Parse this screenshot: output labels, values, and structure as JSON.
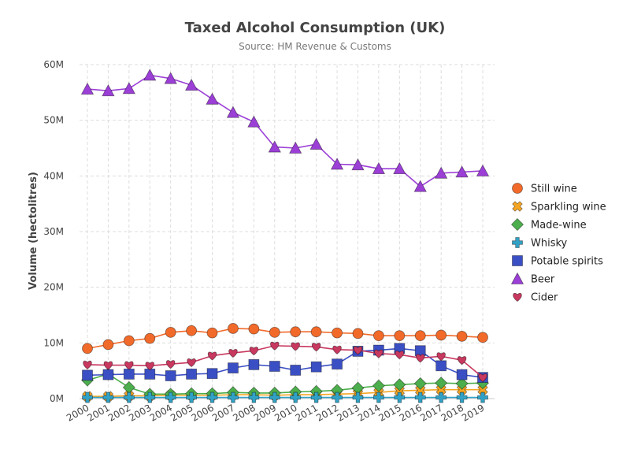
{
  "chart_data": {
    "type": "line",
    "title": "Taxed Alcohol Consumption (UK)",
    "subtitle": "Source: HM Revenue & Customs",
    "xlabel": "",
    "ylabel": "Volume (hectolitres)",
    "ylim": [
      0,
      60000000
    ],
    "yticks": [
      "0M",
      "10M",
      "20M",
      "30M",
      "40M",
      "50M",
      "60M"
    ],
    "categories": [
      "2000",
      "2001",
      "2002",
      "2003",
      "2004",
      "2005",
      "2006",
      "2007",
      "2008",
      "2009",
      "2010",
      "2011",
      "2012",
      "2013",
      "2014",
      "2015",
      "2016",
      "2017",
      "2018",
      "2019"
    ],
    "grid": true,
    "legend_position": "right",
    "series": [
      {
        "name": "Still wine",
        "color": "#f26a2a",
        "marker": "circle",
        "values": [
          9000000,
          9700000,
          10400000,
          10800000,
          11900000,
          12200000,
          11800000,
          12600000,
          12500000,
          11900000,
          12000000,
          12000000,
          11800000,
          11700000,
          11300000,
          11300000,
          11300000,
          11400000,
          11200000,
          11000000
        ]
      },
      {
        "name": "Sparkling wine",
        "color": "#f5a623",
        "marker": "x",
        "values": [
          400000,
          400000,
          500000,
          500000,
          600000,
          600000,
          600000,
          700000,
          700000,
          600000,
          700000,
          700000,
          800000,
          900000,
          1100000,
          1400000,
          1500000,
          1600000,
          1600000,
          1600000
        ]
      },
      {
        "name": "Made-wine",
        "color": "#4cae4c",
        "marker": "diamond",
        "values": [
          3300000,
          4400000,
          2000000,
          800000,
          800000,
          900000,
          900000,
          1100000,
          1000000,
          1000000,
          1200000,
          1300000,
          1500000,
          1900000,
          2300000,
          2500000,
          2700000,
          2800000,
          2700000,
          2800000
        ]
      },
      {
        "name": "Whisky",
        "color": "#31a2c6",
        "marker": "plus",
        "values": [
          200000,
          200000,
          200000,
          200000,
          200000,
          200000,
          200000,
          200000,
          200000,
          200000,
          200000,
          200000,
          200000,
          200000,
          200000,
          200000,
          200000,
          200000,
          200000,
          200000
        ]
      },
      {
        "name": "Potable spirits",
        "color": "#3b4fc4",
        "marker": "square",
        "values": [
          4200000,
          4300000,
          4400000,
          4400000,
          4100000,
          4400000,
          4500000,
          5500000,
          6100000,
          5800000,
          5100000,
          5700000,
          6200000,
          8500000,
          8700000,
          9000000,
          8600000,
          5900000,
          4300000,
          3800000
        ]
      },
      {
        "name": "Beer",
        "color": "#9b3fd6",
        "marker": "triangle",
        "values": [
          55600000,
          55300000,
          55700000,
          58100000,
          57500000,
          56300000,
          53800000,
          51400000,
          49700000,
          45200000,
          45000000,
          45700000,
          42100000,
          42000000,
          41300000,
          41300000,
          38100000,
          40500000,
          40700000,
          40900000
        ]
      },
      {
        "name": "Cider",
        "color": "#c8385f",
        "marker": "heart",
        "values": [
          6100000,
          6000000,
          6000000,
          5900000,
          6200000,
          6500000,
          7700000,
          8200000,
          8600000,
          9500000,
          9400000,
          9300000,
          8800000,
          8700000,
          8100000,
          7900000,
          7300000,
          7600000,
          6900000,
          3800000
        ]
      }
    ]
  }
}
